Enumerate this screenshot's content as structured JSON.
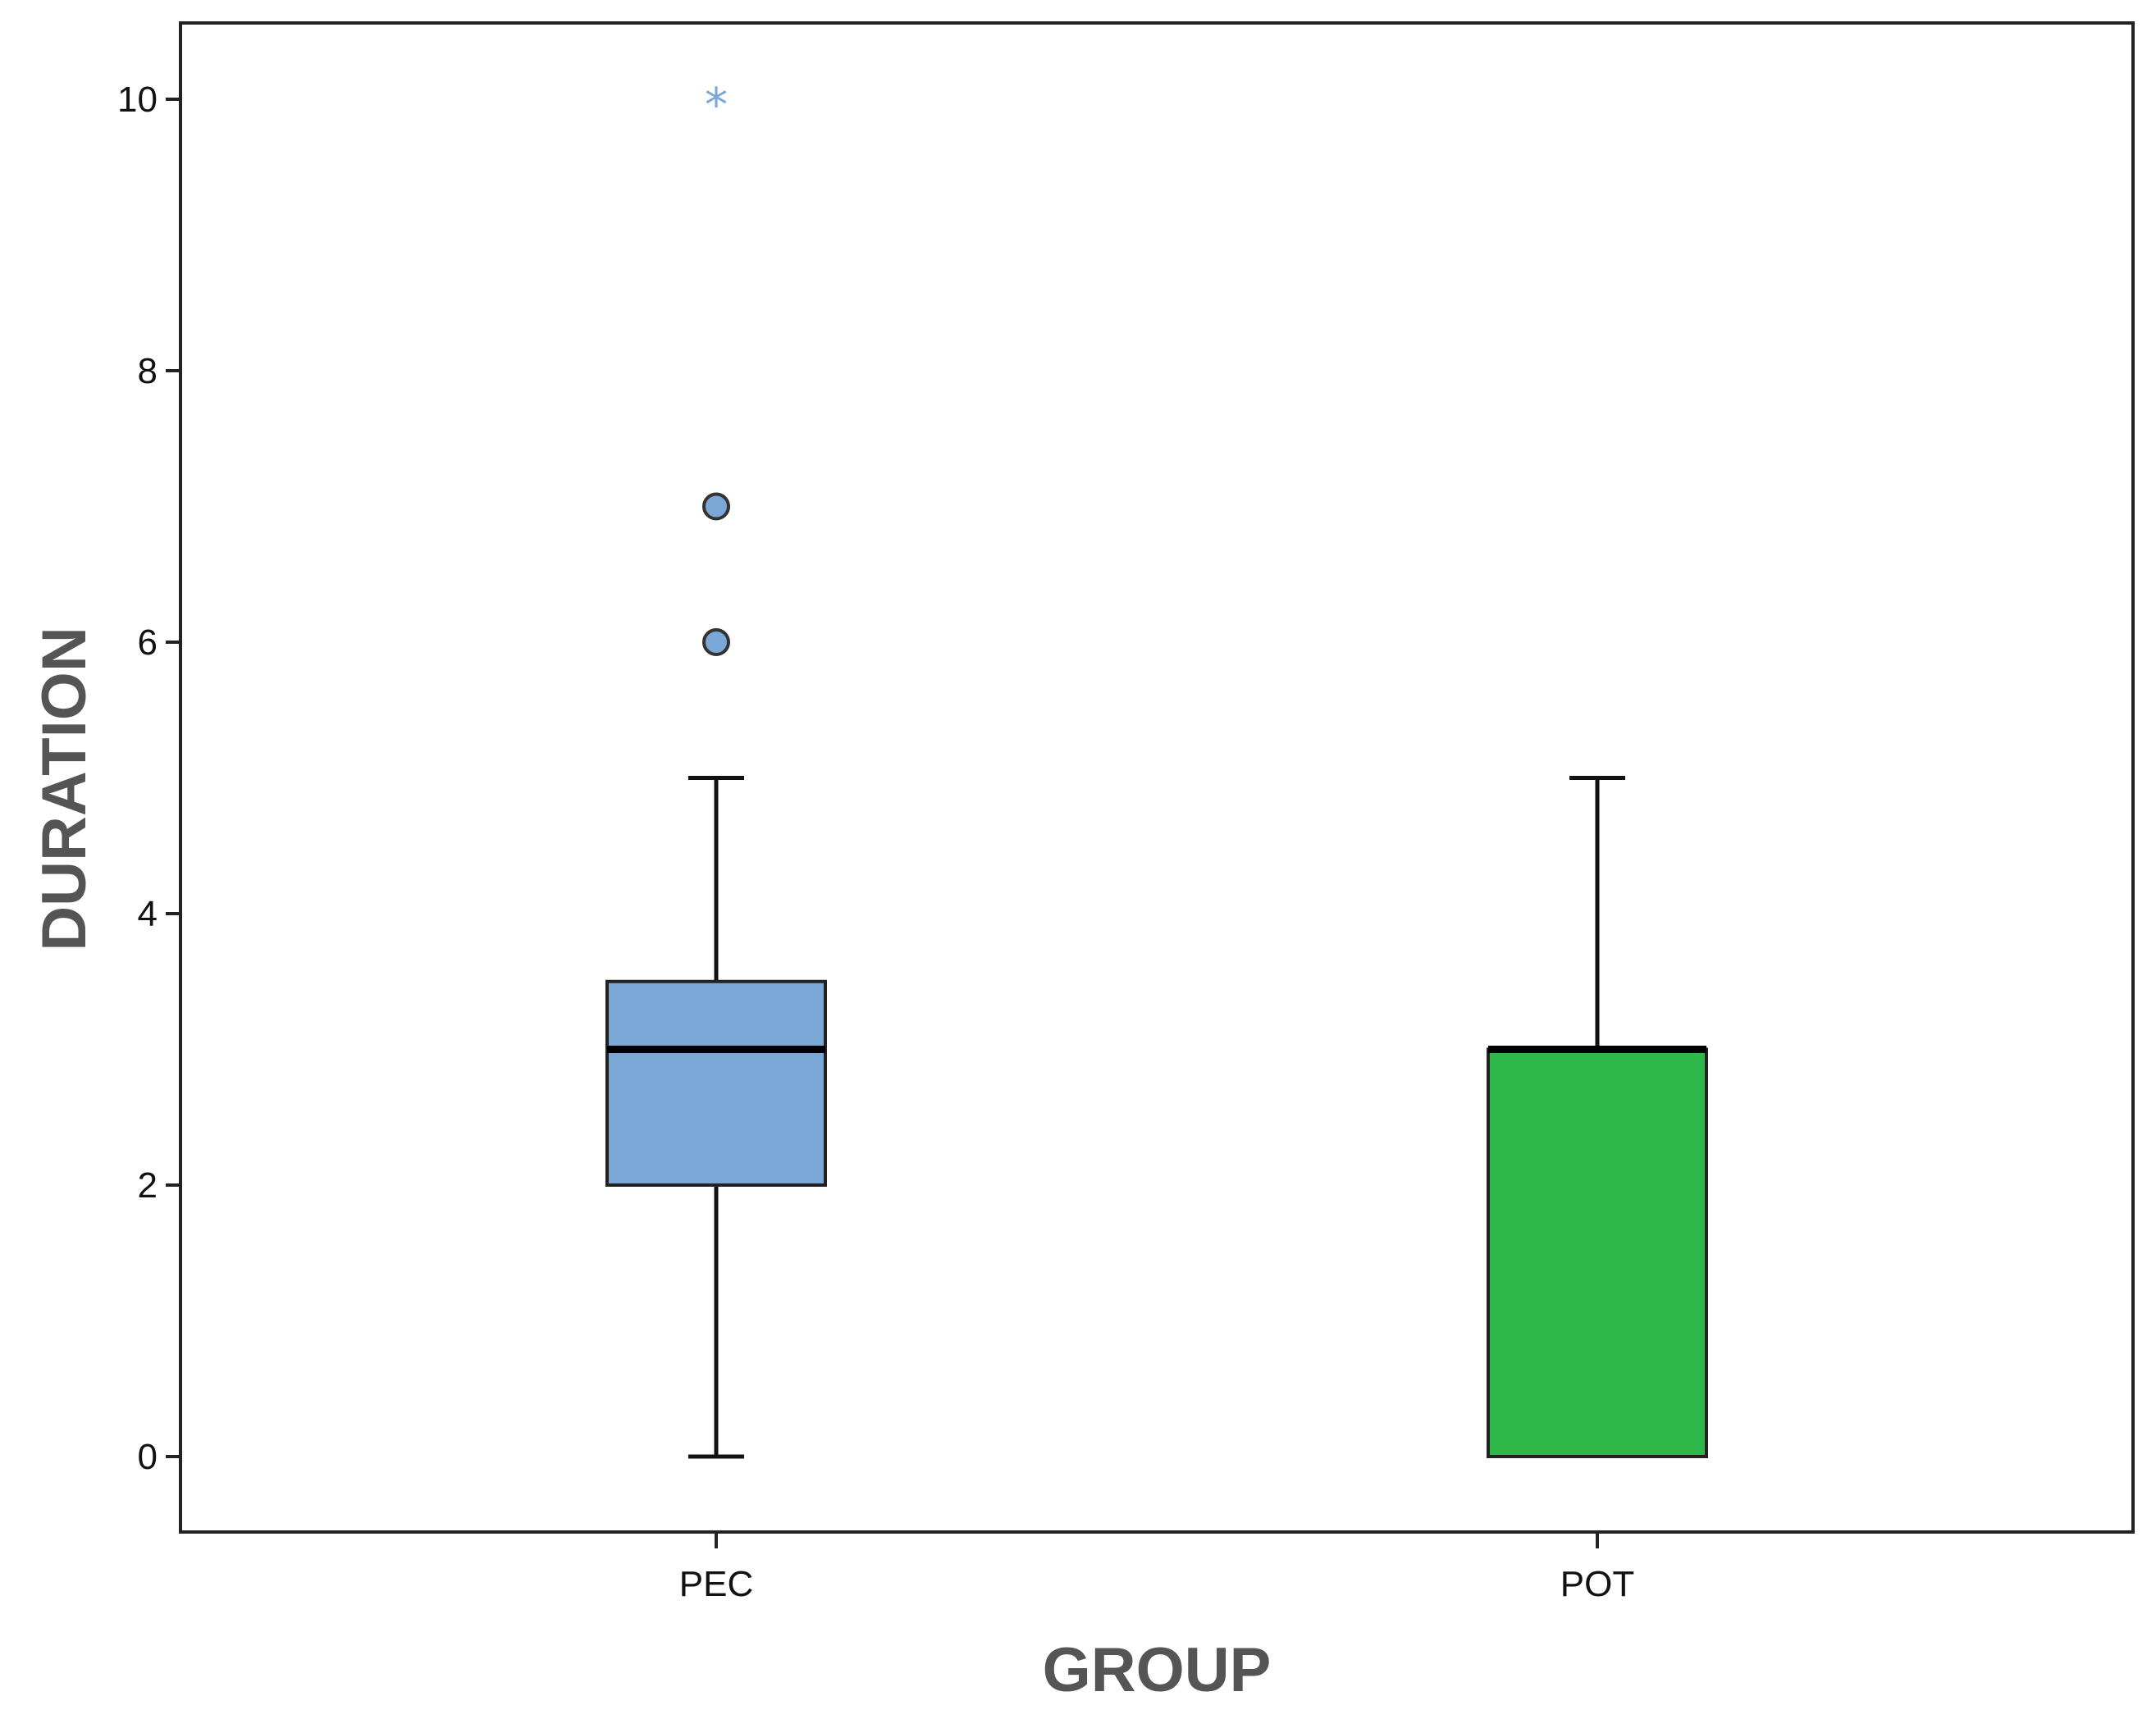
{
  "chart_data": {
    "type": "boxplot",
    "xlabel": "GROUP",
    "ylabel": "DURATION",
    "ylim": [
      -0.55,
      10.55
    ],
    "yticks": [
      0,
      2,
      4,
      6,
      8,
      10
    ],
    "grid": false,
    "categories": [
      "PEC",
      "POT"
    ],
    "series": [
      {
        "category": "PEC",
        "color": "#7ba7d6",
        "whisker_low": 0,
        "q1": 2,
        "median": 3,
        "q3": 3.5,
        "whisker_high": 5,
        "outliers": [
          6,
          7
        ],
        "extremes": [
          10
        ]
      },
      {
        "category": "POT",
        "color": "#2fb84a",
        "whisker_low": 0,
        "q1": 0,
        "median": 3,
        "q3": 3,
        "whisker_high": 5,
        "outliers": [],
        "extremes": []
      }
    ]
  }
}
